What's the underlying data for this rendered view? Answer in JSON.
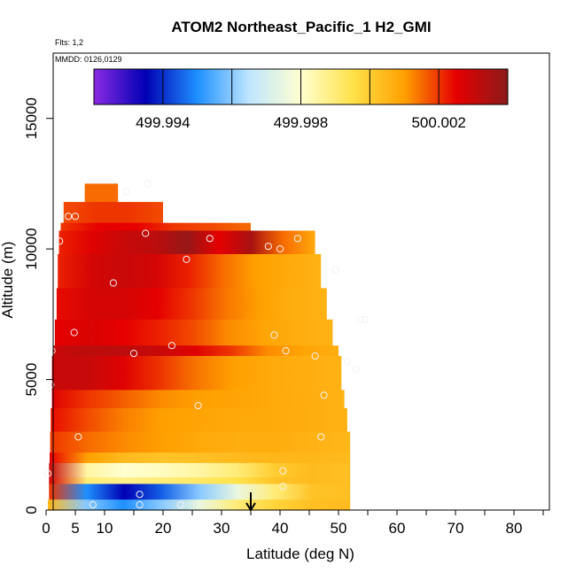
{
  "header": {
    "title": "ATOM2 Northeast_Pacific_1 H2_GMI",
    "flights": "Flts: 1,2",
    "mmdd": "MMDD: 0126,0129"
  },
  "chart_data": {
    "type": "heatmap",
    "title": "ATOM2 Northeast_Pacific_1 H2_GMI",
    "xlabel": "Latitude (deg N)",
    "ylabel": "Altitude (m)",
    "xlim": [
      0,
      85
    ],
    "ylim": [
      0,
      17500
    ],
    "x_ticks": [
      0,
      5,
      10,
      20,
      30,
      40,
      50,
      60,
      70,
      80
    ],
    "y_ticks": [
      0,
      5000,
      10000,
      15000
    ],
    "colorbar": {
      "min": 499.992,
      "max": 500.004,
      "tick_values": [
        499.994,
        499.998,
        500.002
      ],
      "tick_labels": [
        "499.994",
        "499.998",
        "500.002"
      ],
      "colors": [
        "#8a2be2",
        "#0000b4",
        "#1e90ff",
        "#bfe6ff",
        "#ffffd0",
        "#ffe24a",
        "#ffa000",
        "#e60000",
        "#8b1a1a"
      ]
    },
    "layers": [
      {
        "alt_from": 11800,
        "alt_to": 12500,
        "lat_from": 6.6,
        "lat_to": 12.3,
        "values": [
          500.0015,
          500.0015
        ]
      },
      {
        "alt_from": 11000,
        "alt_to": 11800,
        "lat_from": 3.0,
        "lat_to": 20.0,
        "values": [
          500.0018,
          500.002,
          500.002,
          500.0018
        ]
      },
      {
        "alt_from": 10700,
        "alt_to": 11000,
        "lat_from": 2.5,
        "lat_to": 35.0,
        "values": [
          500.002,
          500.0025,
          500.0025,
          500.002,
          500.0018,
          500.0015
        ]
      },
      {
        "alt_from": 9800,
        "alt_to": 10700,
        "lat_from": 2.2,
        "lat_to": 46.0,
        "values": [
          500.0022,
          500.0026,
          500.003,
          500.0032,
          500.0038,
          500.0025,
          500.0035,
          500.0015,
          500.0008
        ]
      },
      {
        "alt_from": 8500,
        "alt_to": 9800,
        "lat_from": 2.0,
        "lat_to": 47.0,
        "values": [
          500.0022,
          500.0028,
          500.003,
          500.0028,
          500.0022,
          500.0015,
          500.001,
          500.0008,
          500.0006
        ]
      },
      {
        "alt_from": 7300,
        "alt_to": 8500,
        "lat_from": 1.8,
        "lat_to": 48.0,
        "values": [
          500.0024,
          500.0028,
          500.0028,
          500.0025,
          500.002,
          500.0014,
          500.001,
          500.0007,
          500.0006
        ]
      },
      {
        "alt_from": 6300,
        "alt_to": 7300,
        "lat_from": 1.5,
        "lat_to": 49.0,
        "values": [
          500.0025,
          500.0027,
          500.0025,
          500.0022,
          500.0018,
          500.0012,
          500.0009,
          500.0007,
          500.0006
        ]
      },
      {
        "alt_from": 5900,
        "alt_to": 6300,
        "lat_from": 1.2,
        "lat_to": 50.0,
        "values": [
          500.003,
          500.0032,
          500.0032,
          500.003,
          500.0026,
          500.002,
          500.0012,
          500.0009,
          500.0007
        ]
      },
      {
        "alt_from": 4600,
        "alt_to": 5900,
        "lat_from": 1.0,
        "lat_to": 50.5,
        "values": [
          500.003,
          500.003,
          500.0026,
          500.002,
          500.0014,
          500.001,
          500.0008,
          500.0007,
          500.0006
        ]
      },
      {
        "alt_from": 3900,
        "alt_to": 4600,
        "lat_from": 1.0,
        "lat_to": 51.0,
        "values": [
          500.0026,
          500.002,
          500.0016,
          500.0012,
          500.001,
          500.0009,
          500.0008,
          500.0007,
          500.0006
        ]
      },
      {
        "alt_from": 3000,
        "alt_to": 3900,
        "lat_from": 0.8,
        "lat_to": 51.5,
        "values": [
          500.0024,
          500.0018,
          500.0013,
          500.001,
          500.0009,
          500.0008,
          500.0008,
          500.0007,
          500.0006
        ]
      },
      {
        "alt_from": 2200,
        "alt_to": 3000,
        "lat_from": 0.7,
        "lat_to": 52.0,
        "values": [
          500.002,
          500.0015,
          500.0012,
          500.001,
          500.0008,
          500.0007,
          500.0007,
          500.0006,
          500.0005
        ]
      },
      {
        "alt_from": 1800,
        "alt_to": 2200,
        "lat_from": 0.6,
        "lat_to": 52.0,
        "values": [
          500.0025,
          500.001,
          500.0004,
          500.0002,
          500.0003,
          500.0004,
          500.0005,
          500.0005,
          500.0004
        ]
      },
      {
        "alt_from": 1250,
        "alt_to": 1800,
        "lat_from": 0.5,
        "lat_to": 52.0,
        "values": [
          500.003,
          499.9985,
          499.998,
          499.9982,
          499.9985,
          499.999,
          500.0,
          500.0004,
          500.0003
        ]
      },
      {
        "alt_from": 1000,
        "alt_to": 1250,
        "lat_from": 0.5,
        "lat_to": 52.0,
        "values": [
          500.0028,
          499.999,
          499.9988,
          499.999,
          499.9992,
          499.9995,
          500.0002,
          500.0004,
          500.0003
        ]
      },
      {
        "alt_from": 400,
        "alt_to": 1000,
        "lat_from": 0.5,
        "lat_to": 52.0,
        "values": [
          500.002,
          499.995,
          499.9935,
          499.9945,
          499.996,
          499.9975,
          499.999,
          500.0002,
          500.0003
        ]
      },
      {
        "alt_from": 0,
        "alt_to": 400,
        "lat_from": 0.3,
        "lat_to": 52.0,
        "values": [
          500.0005,
          499.996,
          499.995,
          499.996,
          499.9975,
          499.999,
          499.9998,
          500.0003,
          500.0004
        ]
      }
    ],
    "points": [
      {
        "lat": 13.7,
        "alt": 12200
      },
      {
        "lat": 17.3,
        "alt": 12500
      },
      {
        "lat": 3.8,
        "alt": 11250
      },
      {
        "lat": 5.0,
        "alt": 11250
      },
      {
        "lat": 2.3,
        "alt": 10300
      },
      {
        "lat": 17.0,
        "alt": 10600
      },
      {
        "lat": 28.0,
        "alt": 10400
      },
      {
        "lat": 38.0,
        "alt": 10100
      },
      {
        "lat": 40.0,
        "alt": 10000
      },
      {
        "lat": 43.0,
        "alt": 10400
      },
      {
        "lat": 24.0,
        "alt": 9600
      },
      {
        "lat": 11.5,
        "alt": 8700
      },
      {
        "lat": 49.5,
        "alt": 9200
      },
      {
        "lat": 53.8,
        "alt": 7300
      },
      {
        "lat": 54.5,
        "alt": 7300
      },
      {
        "lat": 4.8,
        "alt": 6800
      },
      {
        "lat": 39.0,
        "alt": 6700
      },
      {
        "lat": 21.5,
        "alt": 6300
      },
      {
        "lat": 41.0,
        "alt": 6100
      },
      {
        "lat": 1.0,
        "alt": 6100
      },
      {
        "lat": 15.0,
        "alt": 6000
      },
      {
        "lat": 46.0,
        "alt": 5900
      },
      {
        "lat": 51.5,
        "alt": 5700
      },
      {
        "lat": 53.0,
        "alt": 5400
      },
      {
        "lat": 0.8,
        "alt": 4800
      },
      {
        "lat": 47.5,
        "alt": 4400
      },
      {
        "lat": 26.0,
        "alt": 4000
      },
      {
        "lat": 5.5,
        "alt": 2800
      },
      {
        "lat": 47.0,
        "alt": 2800
      },
      {
        "lat": 0.3,
        "alt": 1400
      },
      {
        "lat": 40.5,
        "alt": 1500
      },
      {
        "lat": 16.0,
        "alt": 600
      },
      {
        "lat": 40.5,
        "alt": 900
      },
      {
        "lat": 16.0,
        "alt": 200
      },
      {
        "lat": 8.0,
        "alt": 200
      },
      {
        "lat": 23.0,
        "alt": 200
      }
    ],
    "marker": {
      "lat": 35.0,
      "type": "arrow-down"
    }
  }
}
